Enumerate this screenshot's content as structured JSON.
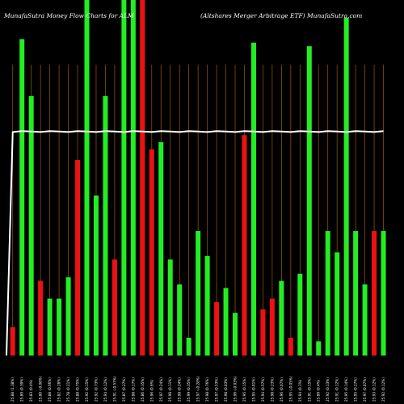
{
  "header": {
    "left_title": "MunafaSutra  Money Flow  Charts for ALM",
    "right_title": "(Altshares Merger Arbitrage   ETF) MunafaSutra.com"
  },
  "colors": {
    "background": "#000000",
    "up": "#22ee22",
    "down": "#ee1111",
    "gridline": "#a05a00",
    "line": "#ffffff"
  },
  "chart_data": {
    "type": "bar",
    "title": "MunafaSutra  Money Flow  Charts for ALM (Altshares Merger Arbitrage   ETF) MunafaSutra.com",
    "grid": "vertical",
    "categories": [
      "25.88 (1.38%)",
      "25.89 (0.39%)",
      "25.83 (0.4%)",
      "25.80 (-0.08%)",
      "25.88 (0.66%)",
      "25.82 (0.28%)",
      "25.78 (0.21%)",
      "25.88 (0.75%)",
      "25.92 (0.15%)",
      "25.92 (0.73%)",
      "25.94 (0.12%)",
      "25.91 (-0.57%)",
      "25.87 (0.27%)",
      "25.88 (0.17%)",
      "25.86 (0.35%)",
      "25.96 (0.6%)",
      "25.97 (0.24%)",
      "25.98 (0.11%)",
      "25.98 (0.24%)",
      "25.99 (0.35%)",
      "25.97 (-0.28%)",
      "25.98 (0.76%)",
      "25.97 (0.53%)",
      "25.98 (0.03%)",
      "25.96 (-0.03%)",
      "25.95 (0.15%)",
      "25.95 (0.01%)",
      "25.94 (0.57%)",
      "25.98 (0.23%)",
      "25.96 (0.07%)",
      "25.95 (-0.05%)",
      "25.94 (0.1%)",
      "25.91 (0.15%)",
      "25.89 (0.4%)",
      "25.92 (0.13%)",
      "25.91 (0.12%)",
      "25.95 (0.14%)",
      "25.95 (0.27%)",
      "25.97 (0.07%)",
      "25.93 (0.12%)",
      "25.92 (0.12%)"
    ],
    "values": [
      8,
      89,
      73,
      21,
      16,
      16,
      22,
      55,
      100,
      45,
      73,
      27,
      100,
      100,
      100,
      58,
      60,
      27,
      20,
      5,
      35,
      28,
      15,
      19,
      12,
      62,
      88,
      13,
      16,
      21,
      5,
      23,
      87,
      4,
      35,
      29,
      95,
      35,
      20,
      35,
      35
    ],
    "directions": [
      "down",
      "up",
      "up",
      "down",
      "up",
      "up",
      "up",
      "down",
      "up",
      "up",
      "up",
      "down",
      "up",
      "up",
      "down",
      "down",
      "up",
      "up",
      "up",
      "up",
      "up",
      "up",
      "down",
      "up",
      "up",
      "down",
      "up",
      "down",
      "down",
      "up",
      "down",
      "up",
      "up",
      "up",
      "up",
      "up",
      "up",
      "up",
      "up",
      "down",
      "up"
    ],
    "line": [
      63,
      63,
      63,
      63,
      63,
      63,
      63,
      63,
      63,
      63,
      63,
      63,
      63,
      63,
      63,
      63,
      63,
      63,
      63,
      63,
      63,
      63,
      63,
      63,
      63,
      63,
      63,
      63,
      63,
      63,
      63,
      63,
      63,
      63,
      63,
      63,
      63,
      63,
      63,
      63,
      63
    ],
    "line_start": 0,
    "ylim": [
      0,
      100
    ]
  }
}
